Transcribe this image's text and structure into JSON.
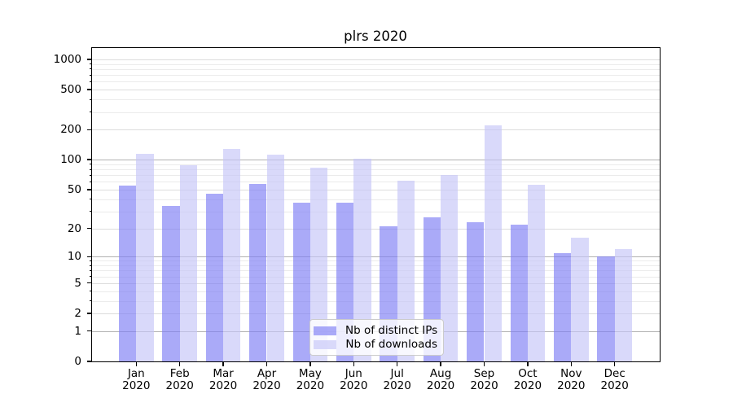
{
  "title": "plrs 2020",
  "chart_data": {
    "type": "bar",
    "title": "plrs 2020",
    "categories": [
      "Jan",
      "Feb",
      "Mar",
      "Apr",
      "May",
      "Jun",
      "Jul",
      "Aug",
      "Sep",
      "Oct",
      "Nov",
      "Dec"
    ],
    "category_year": "2020",
    "series": [
      {
        "name": "Nb of distinct IPs",
        "color": "rgba(125,125,245,0.65)",
        "values": [
          55,
          34,
          45,
          57,
          37,
          37,
          21,
          26,
          23,
          22,
          11,
          10
        ]
      },
      {
        "name": "Nb of downloads",
        "color": "rgba(197,197,248,0.65)",
        "values": [
          115,
          88,
          129,
          112,
          83,
          102,
          61,
          70,
          222,
          56,
          16,
          12
        ]
      }
    ],
    "yscale": "symlog (pixel = baseline - k*ln(1+v))",
    "ylim": [
      0,
      1300
    ],
    "yticks": [
      1000,
      500,
      200,
      100,
      50,
      20,
      10,
      5,
      2,
      1,
      0
    ],
    "yticks_minor": [
      900,
      800,
      700,
      600,
      400,
      300,
      90,
      80,
      70,
      60,
      40,
      30,
      9,
      8,
      7,
      6,
      4,
      3
    ],
    "grid": "both",
    "legend_position": "lower center",
    "colors": {
      "grid_decade": "#b2b2b2",
      "grid_major": "#dcdcdc",
      "grid_minor": "#ebebeb",
      "axis": "#000000"
    }
  }
}
